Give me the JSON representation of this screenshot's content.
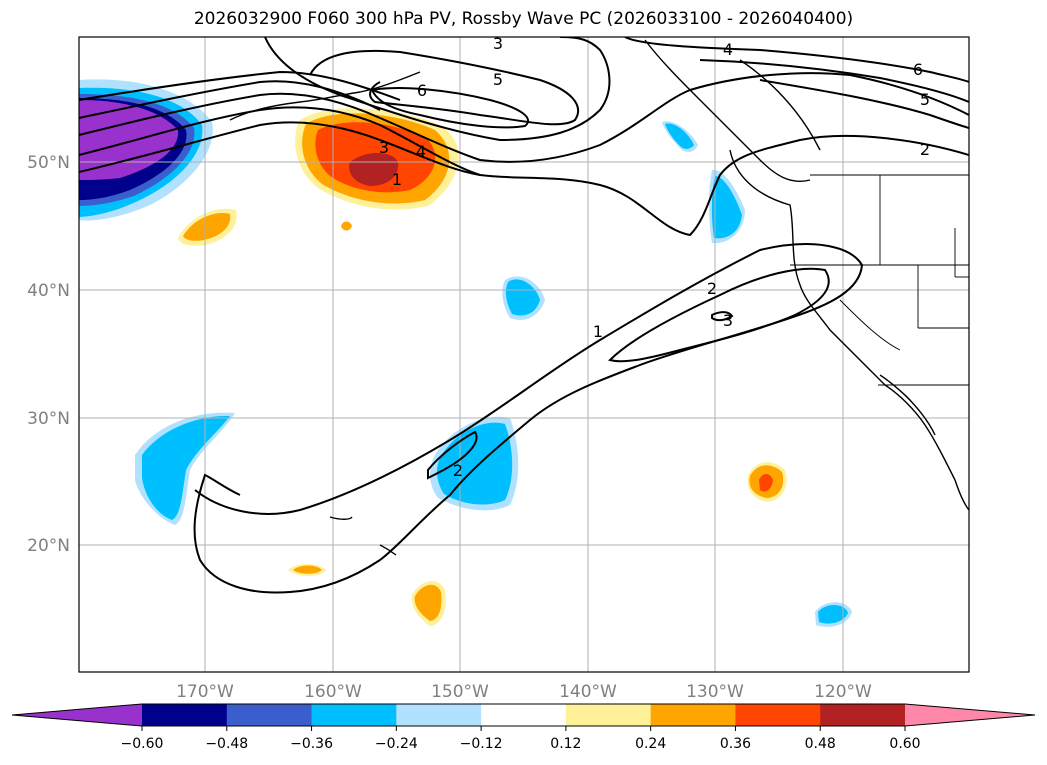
{
  "title": "2026032900 F060 300 hPa PV, Rossby Wave PC (2026033100 - 2026040400)",
  "latitude_labels": [
    "50°N",
    "40°N",
    "30°N",
    "20°N"
  ],
  "longitude_labels": [
    "170°W",
    "160°W",
    "150°W",
    "140°W",
    "130°W",
    "120°W"
  ],
  "contour_labels": [
    {
      "text": "3",
      "name": "contour-label-3-north"
    },
    {
      "text": "4",
      "name": "contour-label-4-northeast"
    },
    {
      "text": "6",
      "name": "contour-label-6-northeast"
    },
    {
      "text": "5",
      "name": "contour-label-5-north"
    },
    {
      "text": "6",
      "name": "contour-label-6-north"
    },
    {
      "text": "5",
      "name": "contour-label-5-east"
    },
    {
      "text": "2",
      "name": "contour-label-2-east"
    },
    {
      "text": "3",
      "name": "contour-label-3-west"
    },
    {
      "text": "4",
      "name": "contour-label-4-west"
    },
    {
      "text": "1",
      "name": "contour-label-1-west"
    },
    {
      "text": "2",
      "name": "contour-label-2-center"
    },
    {
      "text": "3",
      "name": "contour-label-3-center"
    },
    {
      "text": "1",
      "name": "contour-label-1-center"
    },
    {
      "text": "2",
      "name": "contour-label-2-south"
    }
  ],
  "colorbar": {
    "colors": [
      "#9932cc",
      "#00008b",
      "#3a5fcd",
      "#00bfff",
      "#b0e2ff",
      "#ffffff",
      "#fff09a",
      "#ffa500",
      "#ff4500",
      "#b22222",
      "#ff88aa"
    ],
    "ticks": [
      "−0.60",
      "−0.48",
      "−0.36",
      "−0.24",
      "−0.12",
      "0.12",
      "0.24",
      "0.36",
      "0.48",
      "0.60"
    ]
  }
}
